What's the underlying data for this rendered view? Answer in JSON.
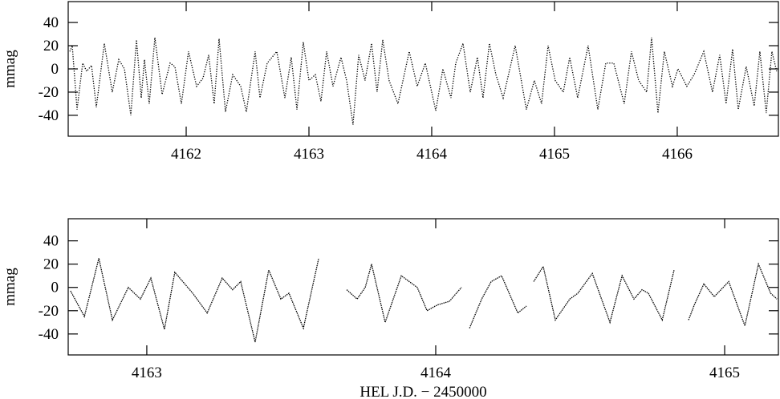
{
  "chart_data": [
    {
      "type": "line",
      "y_label": "mmag",
      "xlim": [
        4161.039,
        4166.824
      ],
      "ylim": [
        -58,
        58
      ],
      "xticks": [
        4162,
        4163,
        4164,
        4165,
        4166
      ],
      "yticks": [
        -40,
        -20,
        0,
        20,
        40
      ],
      "color": "#000000",
      "x": [
        4161.052,
        4161.072,
        4161.111,
        4161.157,
        4161.189,
        4161.229,
        4161.268,
        4161.333,
        4161.398,
        4161.451,
        4161.497,
        4161.549,
        4161.595,
        4161.634,
        4161.66,
        4161.699,
        4161.745,
        4161.804,
        4161.869,
        4161.908,
        4161.961,
        4162.019,
        4162.085,
        4162.137,
        4162.183,
        4162.228,
        4162.268,
        4162.32,
        4162.379,
        4162.444,
        4162.49,
        4162.562,
        4162.601,
        4162.66,
        4162.738,
        4162.804,
        4162.856,
        4162.902,
        4162.954,
        4163.0,
        4163.052,
        4163.098,
        4163.144,
        4163.196,
        4163.261,
        4163.307,
        4163.359,
        4163.405,
        4163.457,
        4163.51,
        4163.555,
        4163.601,
        4163.653,
        4163.725,
        4163.817,
        4163.882,
        4163.948,
        4164.033,
        4164.091,
        4164.157,
        4164.196,
        4164.255,
        4164.314,
        4164.372,
        4164.418,
        4164.47,
        4164.523,
        4164.582,
        4164.68,
        4164.771,
        4164.836,
        4164.895,
        4164.948,
        4165.006,
        4165.072,
        4165.124,
        4165.189,
        4165.274,
        4165.353,
        4165.418,
        4165.483,
        4165.568,
        4165.627,
        4165.686,
        4165.751,
        4165.791,
        4165.843,
        4165.895,
        4165.961,
        4166.006,
        4166.078,
        4166.137,
        4166.216,
        4166.287,
        4166.346,
        4166.398,
        4166.451,
        4166.497,
        4166.562,
        4166.627,
        4166.673,
        4166.725,
        4166.771,
        4166.81
      ],
      "values": [
        15,
        20,
        -35,
        5,
        -2,
        3,
        -33,
        22,
        -20,
        8,
        0,
        -40,
        25,
        -25,
        8,
        -30,
        27,
        -22,
        5,
        2,
        -30,
        15,
        -15,
        -8,
        12,
        -30,
        26,
        -37,
        -5,
        -15,
        -37,
        15,
        -25,
        5,
        15,
        -25,
        10,
        -35,
        23,
        -10,
        -5,
        -28,
        15,
        -15,
        10,
        -10,
        -48,
        12,
        -10,
        22,
        -20,
        25,
        -10,
        -30,
        15,
        -15,
        5,
        -36,
        0,
        -25,
        5,
        22,
        -20,
        10,
        -25,
        22,
        -5,
        -25,
        20,
        -35,
        -10,
        -30,
        20,
        -10,
        -20,
        10,
        -25,
        20,
        -35,
        5,
        5,
        -30,
        15,
        -10,
        -20,
        27,
        -38,
        15,
        -15,
        0,
        -15,
        -5,
        15,
        -20,
        12,
        -30,
        17,
        -35,
        2,
        -32,
        15,
        -38,
        15,
        -2
      ]
    },
    {
      "type": "line",
      "y_label": "mmag",
      "x_label": "HEL J.D. − 2450000",
      "xlim": [
        4162.728,
        4165.186
      ],
      "ylim": [
        -58,
        59
      ],
      "xticks": [
        4163,
        4164,
        4165
      ],
      "yticks": [
        -40,
        -20,
        0,
        20,
        40
      ],
      "color": "#000000",
      "x": [
        4162.736,
        4162.784,
        4162.834,
        4162.881,
        4162.936,
        4162.978,
        4163.014,
        4163.061,
        4163.097,
        4163.159,
        4163.209,
        4163.261,
        4163.297,
        4163.325,
        4163.375,
        4163.422,
        4163.464,
        4163.492,
        4163.542,
        4163.595,
        null,
        4163.692,
        4163.728,
        4163.756,
        4163.778,
        4163.825,
        4163.881,
        4163.936,
        4163.97,
        4164.006,
        4164.047,
        4164.089,
        null,
        4164.117,
        4164.159,
        4164.192,
        4164.228,
        4164.284,
        4164.314,
        null,
        4164.339,
        4164.372,
        4164.414,
        4164.464,
        4164.492,
        4164.542,
        4164.603,
        4164.645,
        4164.686,
        4164.714,
        4164.736,
        4164.784,
        4164.825,
        null,
        4164.875,
        4164.895,
        4164.928,
        4164.964,
        4165.014,
        4165.07,
        4165.117,
        4165.159,
        4165.181
      ],
      "values": [
        -3,
        -25,
        25,
        -28,
        0,
        -10,
        8,
        -36,
        13,
        -5,
        -22,
        8,
        -2,
        5,
        -47,
        15,
        -10,
        -5,
        -35,
        25,
        null,
        -2,
        -10,
        0,
        20,
        -30,
        10,
        0,
        -20,
        -15,
        -12,
        0,
        null,
        -35,
        -10,
        5,
        10,
        -22,
        -16,
        null,
        5,
        18,
        -28,
        -10,
        -5,
        12,
        -30,
        10,
        -10,
        -2,
        -5,
        -28,
        15,
        null,
        -28,
        -15,
        3,
        -8,
        5,
        -33,
        20,
        -5,
        -10
      ]
    }
  ]
}
